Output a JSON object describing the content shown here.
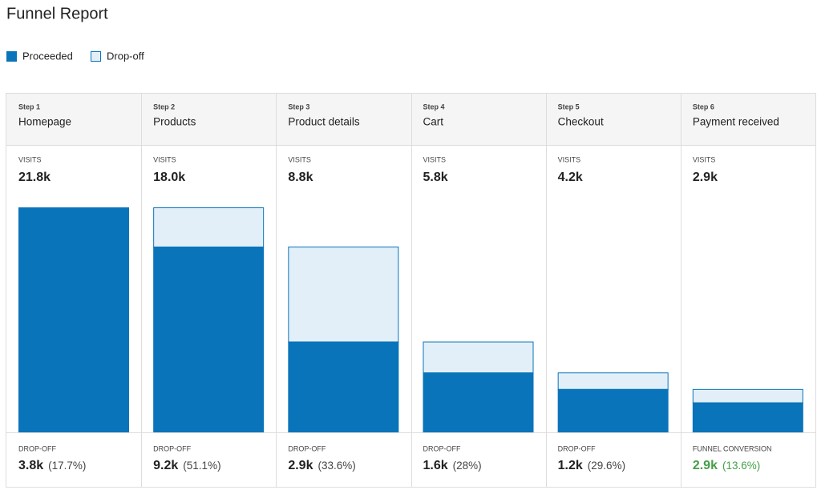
{
  "chart_data": {
    "type": "funnel",
    "title": "Funnel Report",
    "legend": [
      {
        "name": "Proceeded",
        "color": "#0a74ba"
      },
      {
        "name": "Drop-off",
        "color": "#e2eff8"
      }
    ],
    "step_labels": [
      "Step 1",
      "Step 2",
      "Step 3",
      "Step 4",
      "Step 5",
      "Step 6"
    ],
    "categories": [
      "Homepage",
      "Products",
      "Product details",
      "Cart",
      "Checkout",
      "Payment received"
    ],
    "values_label": "VISITS",
    "values": [
      21.8,
      18.0,
      8.8,
      5.8,
      4.2,
      2.9
    ],
    "value_labels": [
      "21.8k",
      "18.0k",
      "8.8k",
      "5.8k",
      "4.2k",
      "2.9k"
    ],
    "dropoff": {
      "label": "DROP-OFF",
      "value_labels": [
        "3.8k",
        "9.2k",
        "2.9k",
        "1.6k",
        "1.2k"
      ],
      "percent_labels": [
        "(17.7%)",
        "(51.1%)",
        "(33.6%)",
        "(28%)",
        "(29.6%)"
      ]
    },
    "conversion": {
      "label": "FUNNEL CONVERSION",
      "value_label": "2.9k",
      "percent_label": "(13.6%)",
      "color": "#43a047"
    }
  }
}
